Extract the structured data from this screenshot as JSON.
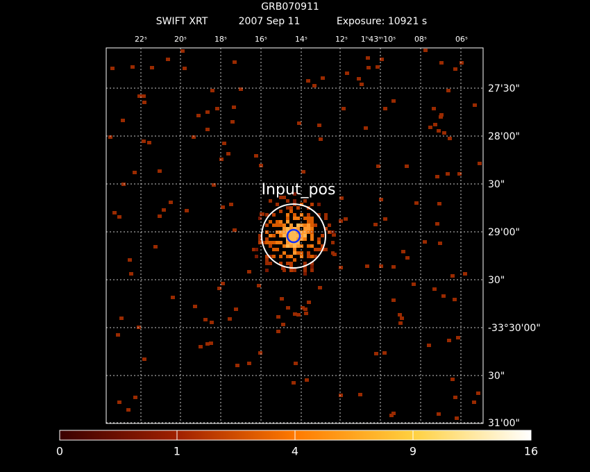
{
  "header": {
    "title": "GRB070911",
    "instrument": "SWIFT XRT",
    "date": "2007 Sep 11",
    "exposure": "Exposure: 10921 s"
  },
  "ra_labels": [
    "22ˢ",
    "20ˢ",
    "18ˢ",
    "16ˢ",
    "14ˢ",
    "12ˢ",
    "1ʰ43ᵐ10ˢ",
    "08ˢ",
    "06ˢ"
  ],
  "dec_labels": [
    "27'30\"",
    "28'00\"",
    "30\"",
    "29'00\"",
    "30\"",
    "-33°30'00\"",
    "30\"",
    "31'00\""
  ],
  "region_label": "Input_pos",
  "colorbar": {
    "labels": [
      "0",
      "1",
      "4",
      "9",
      "16"
    ]
  }
}
